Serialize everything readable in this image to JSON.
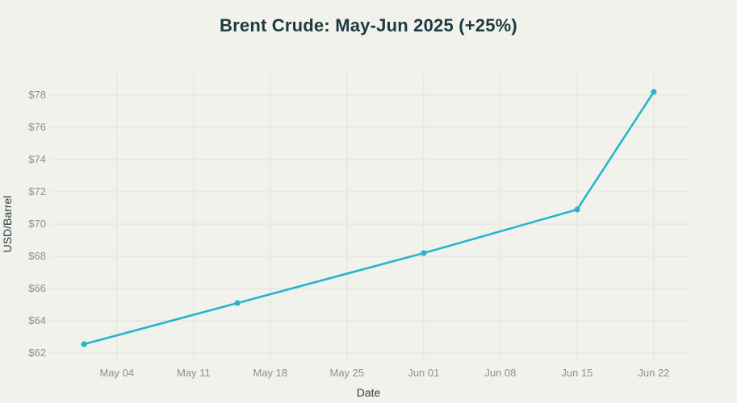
{
  "page": {
    "background_color": "#f2f2ec"
  },
  "chart_data": {
    "type": "line",
    "title": "Brent Crude: May-Jun 2025 (+25%)",
    "xlabel": "Date",
    "ylabel": "USD/Barrel",
    "grid": true,
    "legend": "none",
    "y_tick_prefix": "$",
    "y_ticks": [
      62,
      64,
      66,
      68,
      70,
      72,
      74,
      76,
      78
    ],
    "ylim": [
      61.75,
      79.4
    ],
    "x_ticks": [
      {
        "label": "May 04",
        "day": 3
      },
      {
        "label": "May 11",
        "day": 10
      },
      {
        "label": "May 18",
        "day": 17
      },
      {
        "label": "May 25",
        "day": 24
      },
      {
        "label": "Jun 01",
        "day": 31
      },
      {
        "label": "Jun 08",
        "day": 38
      },
      {
        "label": "Jun 15",
        "day": 45
      },
      {
        "label": "Jun 22",
        "day": 52
      }
    ],
    "xlim_days": [
      -3.1,
      55.1
    ],
    "series": [
      {
        "name": "Brent Crude",
        "points": [
          {
            "date": "May 01",
            "day": 0,
            "value": 62.55
          },
          {
            "date": "May 15",
            "day": 14,
            "value": 65.1
          },
          {
            "date": "Jun 01",
            "day": 31,
            "value": 68.2
          },
          {
            "date": "Jun 15",
            "day": 45,
            "value": 70.9
          },
          {
            "date": "Jun 22",
            "day": 52,
            "value": 78.2
          }
        ]
      }
    ],
    "colors": {
      "line": "#2ab4cc",
      "marker": "#2ab4cc",
      "grid": "#e7e6df",
      "title_text": "#1c3a40",
      "axis_title_text": "#2e3f45",
      "tick_text": "#8f908c",
      "background": "#f2f2ec"
    }
  }
}
